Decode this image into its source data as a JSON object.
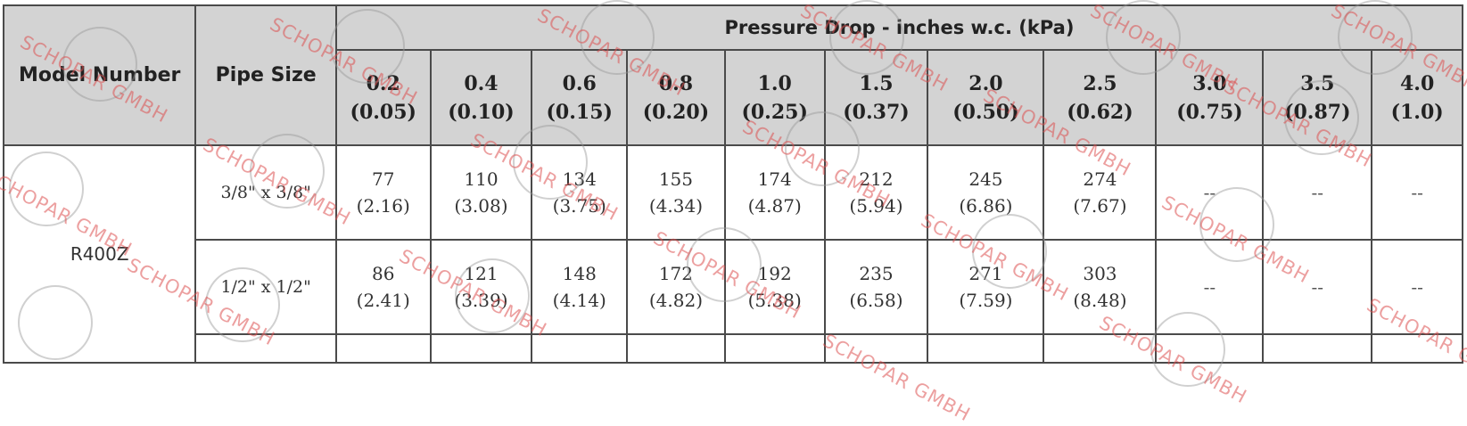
{
  "table": {
    "header_model": "Model Number",
    "header_pipe": "Pipe Size",
    "header_group": "Pressure Drop - inches w.c. (kPa)",
    "columns": [
      {
        "top": "0.2",
        "bottom": "(0.05)"
      },
      {
        "top": "0.4",
        "bottom": "(0.10)"
      },
      {
        "top": "0.6",
        "bottom": "(0.15)"
      },
      {
        "top": "0.8",
        "bottom": "(0.20)"
      },
      {
        "top": "1.0",
        "bottom": "(0.25)"
      },
      {
        "top": "1.5",
        "bottom": "(0.37)"
      },
      {
        "top": "2.0",
        "bottom": "(0.50)"
      },
      {
        "top": "2.5",
        "bottom": "(0.62)"
      },
      {
        "top": "3.0",
        "bottom": "(0.75)"
      },
      {
        "top": "3.5",
        "bottom": "(0.87)"
      },
      {
        "top": "4.0",
        "bottom": "(1.0)"
      }
    ],
    "model": "R400Z",
    "rows": [
      {
        "pipe": "3/8\" x 3/8\"",
        "cells": [
          {
            "top": "77",
            "bottom": "(2.16)"
          },
          {
            "top": "110",
            "bottom": "(3.08)"
          },
          {
            "top": "134",
            "bottom": "(3.75)"
          },
          {
            "top": "155",
            "bottom": "(4.34)"
          },
          {
            "top": "174",
            "bottom": "(4.87)"
          },
          {
            "top": "212",
            "bottom": "(5.94)"
          },
          {
            "top": "245",
            "bottom": "(6.86)"
          },
          {
            "top": "274",
            "bottom": "(7.67)"
          },
          {
            "top": "--",
            "bottom": ""
          },
          {
            "top": "--",
            "bottom": ""
          },
          {
            "top": "--",
            "bottom": ""
          }
        ]
      },
      {
        "pipe": "1/2\" x 1/2\"",
        "cells": [
          {
            "top": "86",
            "bottom": "(2.41)"
          },
          {
            "top": "121",
            "bottom": "(3.39)"
          },
          {
            "top": "148",
            "bottom": "(4.14)"
          },
          {
            "top": "172",
            "bottom": "(4.82)"
          },
          {
            "top": "192",
            "bottom": "(5.38)"
          },
          {
            "top": "235",
            "bottom": "(6.58)"
          },
          {
            "top": "271",
            "bottom": "(7.59)"
          },
          {
            "top": "303",
            "bottom": "(8.48)"
          },
          {
            "top": "--",
            "bottom": ""
          },
          {
            "top": "--",
            "bottom": ""
          },
          {
            "top": "--",
            "bottom": ""
          }
        ]
      }
    ]
  },
  "watermark": {
    "text": "SCHOPAR GMBH",
    "color": "#dc5050"
  }
}
